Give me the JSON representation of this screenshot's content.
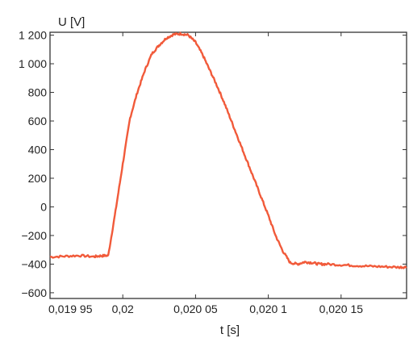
{
  "chart_data": {
    "type": "line",
    "title": "",
    "ylabel": "U [V]",
    "xlabel": "t [s]",
    "xlim": [
      0.01995,
      0.020195
    ],
    "ylim": [
      -640,
      1220
    ],
    "grid": false,
    "legend": "none",
    "line_color": "#f15a3a",
    "x_ticks": [
      {
        "value": 0.01995,
        "label": "0,019 95"
      },
      {
        "value": 0.02,
        "label": "0,02"
      },
      {
        "value": 0.02005,
        "label": "0,020 05"
      },
      {
        "value": 0.0201,
        "label": "0,020 1"
      },
      {
        "value": 0.02015,
        "label": "0,020 15"
      }
    ],
    "y_ticks": [
      {
        "value": 1200,
        "label": "1 200"
      },
      {
        "value": 1000,
        "label": "1 000"
      },
      {
        "value": 800,
        "label": "800"
      },
      {
        "value": 600,
        "label": "600"
      },
      {
        "value": 400,
        "label": "400"
      },
      {
        "value": 200,
        "label": "200"
      },
      {
        "value": 0,
        "label": "0"
      },
      {
        "value": -200,
        "label": "−200"
      },
      {
        "value": -400,
        "label": "−400"
      },
      {
        "value": -600,
        "label": "−600"
      }
    ],
    "series": [
      {
        "x": [
          0.01995,
          0.01996,
          0.01997,
          0.01998,
          0.019985,
          0.01999,
          0.019995,
          0.02,
          0.020005,
          0.02001,
          0.020015,
          0.02002,
          0.020025,
          0.02003,
          0.020035,
          0.02004,
          0.020045,
          0.02005,
          0.020055,
          0.02006,
          0.020065,
          0.02007,
          0.020075,
          0.02008,
          0.020085,
          0.02009,
          0.020095,
          0.0201,
          0.020105,
          0.02011,
          0.020115,
          0.02012,
          0.020125,
          0.02013,
          0.020135,
          0.02014,
          0.02015,
          0.02016,
          0.02017,
          0.02018,
          0.02019,
          0.020195
        ],
        "y": [
          -350,
          -345,
          -340,
          -348,
          -342,
          -340,
          -30,
          300,
          620,
          800,
          950,
          1070,
          1130,
          1180,
          1205,
          1210,
          1200,
          1150,
          1060,
          950,
          840,
          720,
          590,
          460,
          330,
          200,
          70,
          -60,
          -200,
          -310,
          -390,
          -400,
          -385,
          -390,
          -400,
          -400,
          -405,
          -410,
          -415,
          -418,
          -422,
          -420
        ]
      }
    ]
  }
}
